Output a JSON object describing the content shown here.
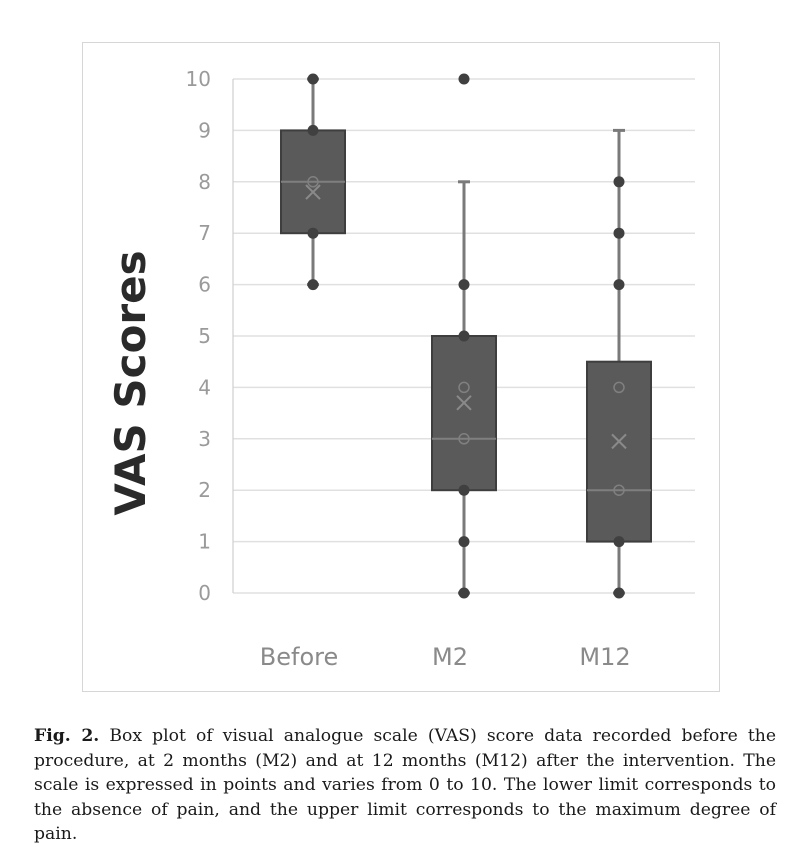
{
  "chart_data": {
    "type": "box",
    "ylabel": "VAS Scores",
    "xlabel": "",
    "ylim": [
      0,
      10
    ],
    "yticks": [
      "0",
      "1",
      "2",
      "3",
      "4",
      "5",
      "6",
      "7",
      "8",
      "9",
      "10"
    ],
    "grid": true,
    "categories": [
      "Before",
      "M2",
      "M12"
    ],
    "boxes": [
      {
        "category": "Before",
        "min": 6,
        "q1": 7,
        "median": 8,
        "q3": 9,
        "max": 10,
        "mean": 7.8,
        "points": [
          6,
          7,
          8,
          9,
          10
        ]
      },
      {
        "category": "M2",
        "min": 0,
        "q1": 2,
        "median": 3,
        "q3": 5,
        "max": 8,
        "mean": 3.7,
        "outliers": [
          10
        ],
        "points": [
          0,
          1,
          2,
          3,
          4,
          5,
          6,
          10
        ]
      },
      {
        "category": "M12",
        "min": 0,
        "q1": 1,
        "median": 2,
        "q3": 4.5,
        "max": 9,
        "mean": 2.95,
        "points": [
          0,
          1,
          2,
          4,
          6,
          7,
          8
        ]
      }
    ]
  },
  "caption": {
    "label": "Fig. 2.",
    "text": "Box plot of visual analogue scale (VAS) score data recorded before the procedure, at 2 months (M2) and at 12 months (M12) after the intervention. The scale is expressed in points and varies from 0 to 10. The lower limit corresponds to the absence of pain, and the upper limit corresponds to the maximum degree of pain."
  },
  "colors": {
    "box_fill": "#5a5a5a",
    "box_stroke": "#3e3e3e",
    "whisker": "#7a7a7a",
    "point": "#404040",
    "grid": "#e0e0e0",
    "axis": "#cfcfcf"
  }
}
